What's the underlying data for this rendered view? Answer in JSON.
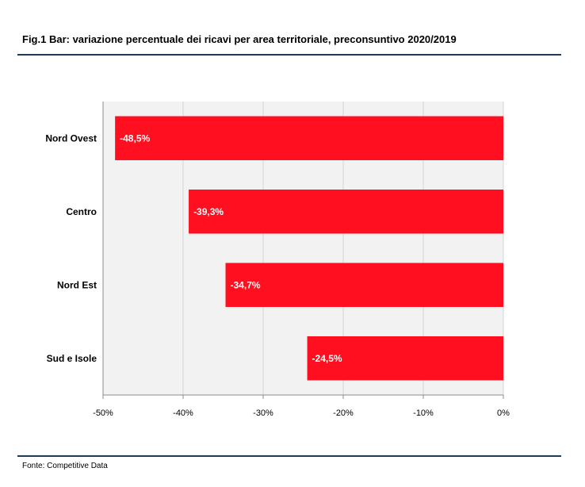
{
  "title": "Fig.1 Bar: variazione percentuale dei ricavi per area territoriale, preconsuntivo 2020/2019",
  "source": "Fonte: Competitive Data",
  "colors": {
    "bar": "#ff0f1f",
    "plot_bg": "#f2f2f2",
    "rule": "#1f3b5a"
  },
  "chart_data": {
    "type": "bar",
    "orientation": "horizontal",
    "title": "Fig.1 Bar: variazione percentuale dei ricavi per area territoriale, preconsuntivo 2020/2019",
    "categories": [
      "Nord Ovest",
      "Centro",
      "Nord Est",
      "Sud e Isole"
    ],
    "values": [
      -48.5,
      -39.3,
      -34.7,
      -24.5
    ],
    "data_labels": [
      "-48,5%",
      "-39,3%",
      "-34,7%",
      "-24,5%"
    ],
    "xlim": [
      -50,
      0
    ],
    "x_ticks": [
      -50,
      -40,
      -30,
      -20,
      -10,
      0
    ],
    "x_tick_labels": [
      "-50%",
      "-40%",
      "-30%",
      "-20%",
      "-10%",
      "0%"
    ],
    "xlabel": "",
    "ylabel": "",
    "grid": "vertical",
    "legend": "none"
  }
}
